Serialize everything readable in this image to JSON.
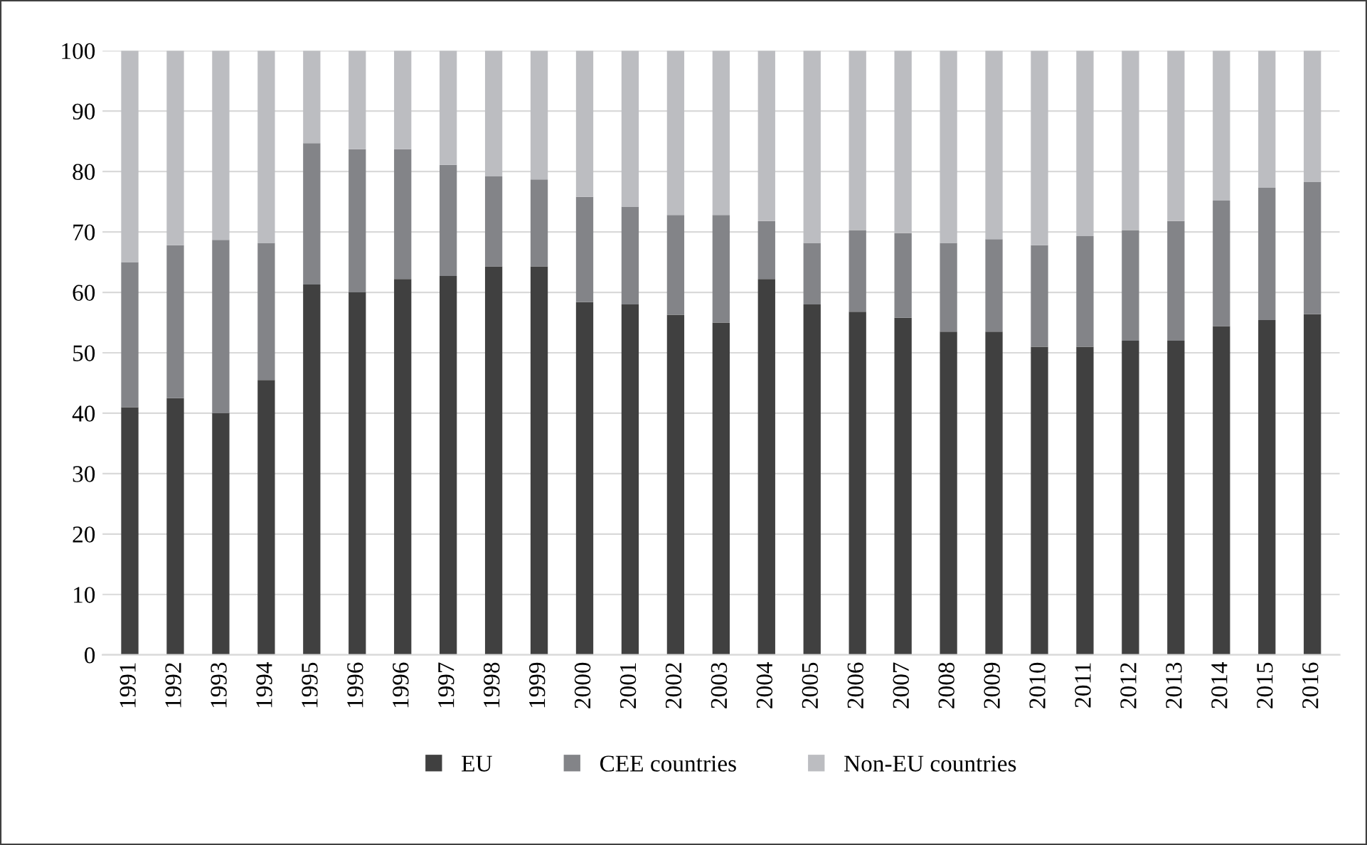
{
  "chart_data": {
    "type": "bar",
    "stacked": true,
    "categories": [
      "1991",
      "1992",
      "1993",
      "1994",
      "1995",
      "1996",
      "1996",
      "1997",
      "1998",
      "1999",
      "2000",
      "2001",
      "2002",
      "2003",
      "2004",
      "2005",
      "2006",
      "2007",
      "2008",
      "2009",
      "2010",
      "2011",
      "2012",
      "2013",
      "2014",
      "2015",
      "2016"
    ],
    "series": [
      {
        "name": "EU",
        "color": "#404040",
        "values": [
          41,
          42.5,
          40,
          45.5,
          61.3,
          60,
          62.2,
          62.7,
          64.3,
          64.3,
          58.4,
          58,
          56.3,
          55,
          62.2,
          58,
          56.8,
          55.8,
          53.5,
          53.5,
          51,
          51,
          52,
          52,
          54.4,
          55.4,
          56.4
        ]
      },
      {
        "name": "CEE countries",
        "color": "#838488",
        "values": [
          24,
          25.3,
          28.7,
          22.7,
          23.4,
          23.7,
          21.5,
          18.4,
          14.9,
          14.4,
          17.4,
          16.2,
          16.5,
          17.8,
          9.6,
          10.2,
          13.5,
          14,
          14.7,
          15.3,
          16.8,
          18.3,
          18.3,
          19.8,
          20.8,
          21.9,
          21.9
        ]
      },
      {
        "name": "Non-EU countries",
        "color": "#bcbdc1",
        "values": [
          35,
          32.2,
          31.3,
          31.8,
          15.3,
          16.3,
          16.3,
          18.9,
          20.8,
          21.3,
          24.2,
          25.8,
          27.2,
          27.2,
          28.2,
          31.8,
          29.7,
          30.2,
          31.8,
          31.2,
          32.2,
          30.7,
          29.7,
          28.2,
          24.8,
          22.7,
          21.7
        ]
      }
    ],
    "ylim": [
      0,
      100
    ],
    "yticks": [
      0,
      10,
      20,
      30,
      40,
      50,
      60,
      70,
      80,
      90,
      100
    ],
    "grid": "y",
    "legend": "bottom"
  }
}
